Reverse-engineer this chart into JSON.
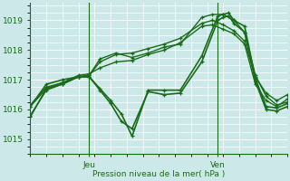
{
  "bg_color": "#cce8e8",
  "grid_color": "#ffffff",
  "line_color": "#1a6b1a",
  "marker_color": "#1a6b1a",
  "xlabel_text": "Pression niveau de la mer( hPa )",
  "tick_label_color": "#1a6b1a",
  "ylim": [
    1014.5,
    1019.6
  ],
  "yticks": [
    1015,
    1016,
    1017,
    1018,
    1019
  ],
  "xlim": [
    0,
    48
  ],
  "x_jeu": 11,
  "x_ven": 35,
  "lines": [
    [
      0,
      1015.8,
      3,
      1016.65,
      6,
      1016.85,
      9,
      1017.1,
      11,
      1017.15,
      13,
      1017.7,
      16,
      1017.9,
      19,
      1017.75,
      22,
      1017.9,
      25,
      1018.1,
      28,
      1018.2,
      32,
      1019.1,
      34,
      1019.2,
      36,
      1019.2,
      38,
      1019.0,
      40,
      1018.6,
      42,
      1017.15,
      44,
      1016.45,
      46,
      1016.15,
      48,
      1016.25
    ],
    [
      0,
      1016.1,
      3,
      1016.7,
      6,
      1016.85,
      9,
      1017.1,
      11,
      1017.15,
      13,
      1017.6,
      16,
      1017.85,
      19,
      1017.9,
      22,
      1018.05,
      25,
      1018.2,
      28,
      1018.4,
      32,
      1018.9,
      34,
      1019.0,
      36,
      1018.85,
      38,
      1018.65,
      40,
      1018.3,
      42,
      1017.1,
      44,
      1016.55,
      46,
      1016.3,
      48,
      1016.5
    ],
    [
      0,
      1016.15,
      3,
      1016.75,
      6,
      1016.9,
      9,
      1017.15,
      11,
      1017.2,
      13,
      1017.4,
      16,
      1017.6,
      19,
      1017.65,
      22,
      1017.85,
      25,
      1018.0,
      28,
      1018.25,
      32,
      1018.8,
      34,
      1018.85,
      36,
      1018.7,
      38,
      1018.55,
      40,
      1018.2,
      42,
      1016.85,
      44,
      1016.3,
      46,
      1016.1,
      48,
      1016.35
    ],
    [
      0,
      1016.1,
      3,
      1016.85,
      6,
      1017.0,
      9,
      1017.1,
      11,
      1017.1,
      13,
      1016.7,
      15,
      1016.3,
      17,
      1015.85,
      19,
      1015.1,
      22,
      1016.65,
      25,
      1016.65,
      28,
      1016.65,
      32,
      1017.8,
      35,
      1019.15,
      36,
      1019.2,
      37,
      1019.25,
      38,
      1019.0,
      40,
      1018.8,
      42,
      1017.05,
      44,
      1016.1,
      46,
      1016.05,
      48,
      1016.2
    ],
    [
      0,
      1015.75,
      3,
      1016.7,
      6,
      1016.9,
      9,
      1017.1,
      11,
      1017.1,
      13,
      1016.65,
      15,
      1016.2,
      17,
      1015.6,
      19,
      1015.35,
      22,
      1016.6,
      25,
      1016.5,
      28,
      1016.55,
      32,
      1017.6,
      35,
      1019.0,
      36,
      1019.1,
      37,
      1019.15,
      38,
      1018.9,
      40,
      1018.6,
      42,
      1016.95,
      44,
      1016.0,
      46,
      1015.95,
      48,
      1016.1
    ]
  ],
  "line_widths": [
    1.0,
    1.0,
    1.0,
    1.2,
    1.2
  ]
}
